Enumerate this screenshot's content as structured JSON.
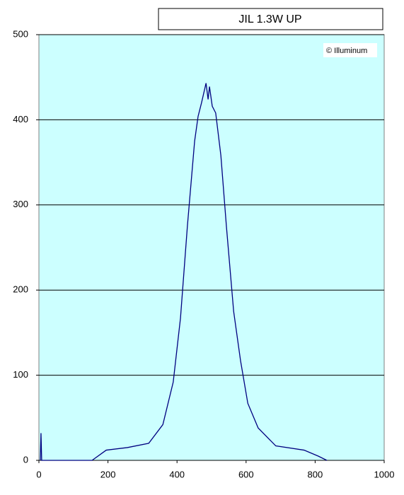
{
  "chart_data": {
    "type": "line",
    "title": "JIL 1.3W UP",
    "annotation": "© Illuminum",
    "x": [
      4,
      6,
      8,
      154,
      195,
      256,
      318,
      359,
      389,
      410,
      430,
      451,
      461,
      471,
      484,
      490,
      494,
      502,
      512,
      527,
      543,
      564,
      584,
      605,
      635,
      686,
      768,
      809,
      834
    ],
    "series": [
      {
        "color": "#000080",
        "values": [
          0,
          32,
          0,
          0,
          12,
          15,
          20,
          42,
          92,
          167,
          275,
          375,
          404,
          420,
          443,
          424,
          439,
          416,
          408,
          358,
          275,
          175,
          117,
          67,
          38,
          17,
          12,
          5,
          0
        ]
      }
    ],
    "xlim": [
      0,
      1000
    ],
    "xticks": [
      0,
      200,
      400,
      600,
      800,
      1000
    ],
    "ylim": [
      0,
      500
    ],
    "yticks": [
      0,
      100,
      200,
      300,
      400,
      500
    ],
    "grid": true,
    "background": "#ccffff"
  }
}
